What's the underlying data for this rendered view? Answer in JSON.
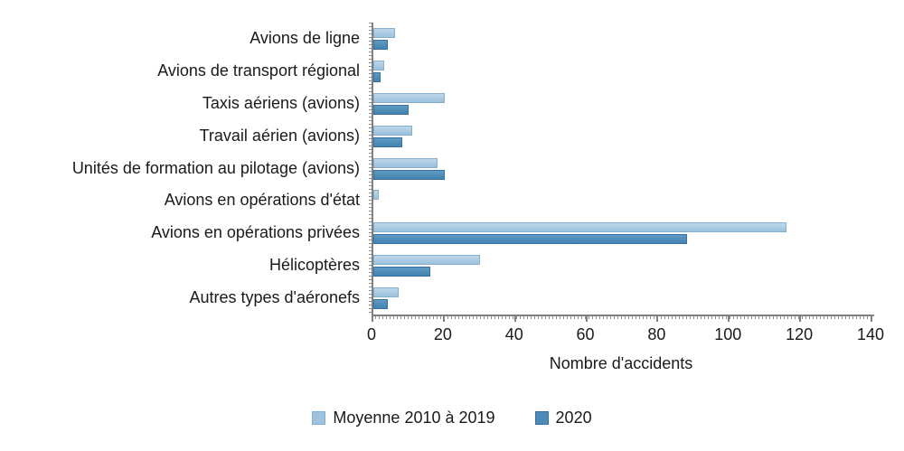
{
  "chart_data": {
    "type": "bar",
    "orientation": "horizontal",
    "title": "",
    "xlabel": "Nombre d'accidents",
    "xlim": [
      0,
      140
    ],
    "xticks": [
      0,
      20,
      40,
      60,
      80,
      100,
      120,
      140
    ],
    "grid": false,
    "legend_position": "bottom",
    "categories": [
      "Avions de ligne",
      "Avions de transport régional",
      "Taxis aériens (avions)",
      "Travail aérien (avions)",
      "Unités de formation au pilotage (avions)",
      "Avions en opérations d'état",
      "Avions en opérations privées",
      "Hélicoptères",
      "Autres types d'aéronefs"
    ],
    "series": [
      {
        "name": "Moyenne 2010 à 2019",
        "color": "#9CC2DC",
        "values": [
          6,
          3,
          20,
          11,
          18,
          1.5,
          116,
          30,
          7
        ]
      },
      {
        "name": "2020",
        "color": "#4C8BB8",
        "values": [
          4,
          2,
          10,
          8,
          20,
          0,
          88,
          16,
          4
        ]
      }
    ]
  },
  "colors": {
    "axis": "#808080",
    "text": "#1A1A1A",
    "light_fill": "#9CC2DC",
    "light_border": "#86AFCE",
    "dark_fill": "#4C8BB8",
    "dark_border": "#36719F"
  }
}
